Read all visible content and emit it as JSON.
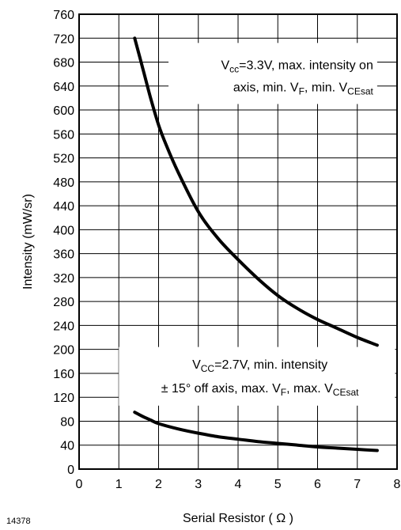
{
  "figure_id": "14378",
  "chart_data": {
    "type": "line",
    "title": "",
    "xlabel": "Serial Resistor ( Ω )",
    "ylabel": "Intensity (mW/sr)",
    "xlim": [
      0,
      8
    ],
    "ylim": [
      0,
      760
    ],
    "x_ticks": [
      0,
      1,
      2,
      3,
      4,
      5,
      6,
      7,
      8
    ],
    "y_ticks": [
      0,
      40,
      80,
      120,
      160,
      200,
      240,
      280,
      320,
      360,
      400,
      440,
      480,
      520,
      560,
      600,
      640,
      680,
      720,
      760
    ],
    "grid": true,
    "series": [
      {
        "x": [
          1.4,
          1.6,
          1.8,
          2.0,
          2.2,
          2.5,
          3.0,
          3.5,
          4.0,
          4.5,
          5.0,
          5.5,
          6.0,
          6.5,
          7.0,
          7.5
        ],
        "values": [
          720,
          670,
          620,
          575,
          540,
          495,
          430,
          385,
          350,
          318,
          290,
          268,
          250,
          235,
          220,
          207
        ]
      },
      {
        "x": [
          1.4,
          1.6,
          1.8,
          2.0,
          2.5,
          3.0,
          3.5,
          4.0,
          4.5,
          5.0,
          5.5,
          6.0,
          6.5,
          7.0,
          7.5
        ],
        "values": [
          95,
          88,
          82,
          76,
          67,
          60,
          54,
          50,
          46,
          43,
          40,
          37,
          35,
          33,
          31
        ]
      }
    ],
    "annotations": [
      {
        "line1_parts": [
          "V",
          "cc",
          "=3.3V, max. intensity on"
        ],
        "line2_parts": [
          "axis, min. V",
          "F",
          ", min. V",
          "CEsat"
        ]
      },
      {
        "line1_parts": [
          "V",
          "CC",
          "=2.7V, min. intensity"
        ],
        "line2_parts": [
          "± 15° off axis, max. V",
          "F",
          ", max. V",
          "CEsat"
        ]
      }
    ]
  }
}
